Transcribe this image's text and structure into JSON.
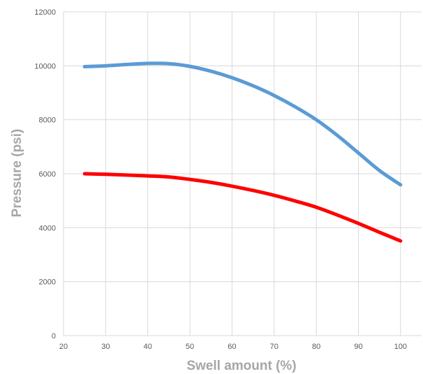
{
  "chart_data": {
    "type": "line",
    "title": "",
    "xlabel": "Swell amount (%)",
    "ylabel": "Pressure (psi)",
    "xlim": [
      20,
      105
    ],
    "ylim": [
      0,
      12000
    ],
    "x_ticks": [
      20,
      30,
      40,
      50,
      60,
      70,
      80,
      90,
      100
    ],
    "y_ticks": [
      0,
      2000,
      4000,
      6000,
      8000,
      10000,
      12000
    ],
    "grid": true,
    "legend": "none",
    "series": [
      {
        "color": "#5b9bd5",
        "x": [
          25,
          30,
          35,
          40,
          45,
          50,
          55,
          60,
          65,
          70,
          75,
          80,
          85,
          90,
          95,
          100
        ],
        "y": [
          9970,
          10000,
          10050,
          10090,
          10080,
          9980,
          9800,
          9560,
          9260,
          8900,
          8480,
          8000,
          7420,
          6770,
          6120,
          5590
        ]
      },
      {
        "color": "#ff0000",
        "x": [
          25,
          30,
          35,
          40,
          45,
          50,
          55,
          60,
          65,
          70,
          75,
          80,
          85,
          90,
          95,
          100
        ],
        "y": [
          6000,
          5980,
          5950,
          5920,
          5880,
          5790,
          5680,
          5540,
          5380,
          5200,
          4990,
          4760,
          4470,
          4160,
          3830,
          3510
        ]
      }
    ]
  }
}
